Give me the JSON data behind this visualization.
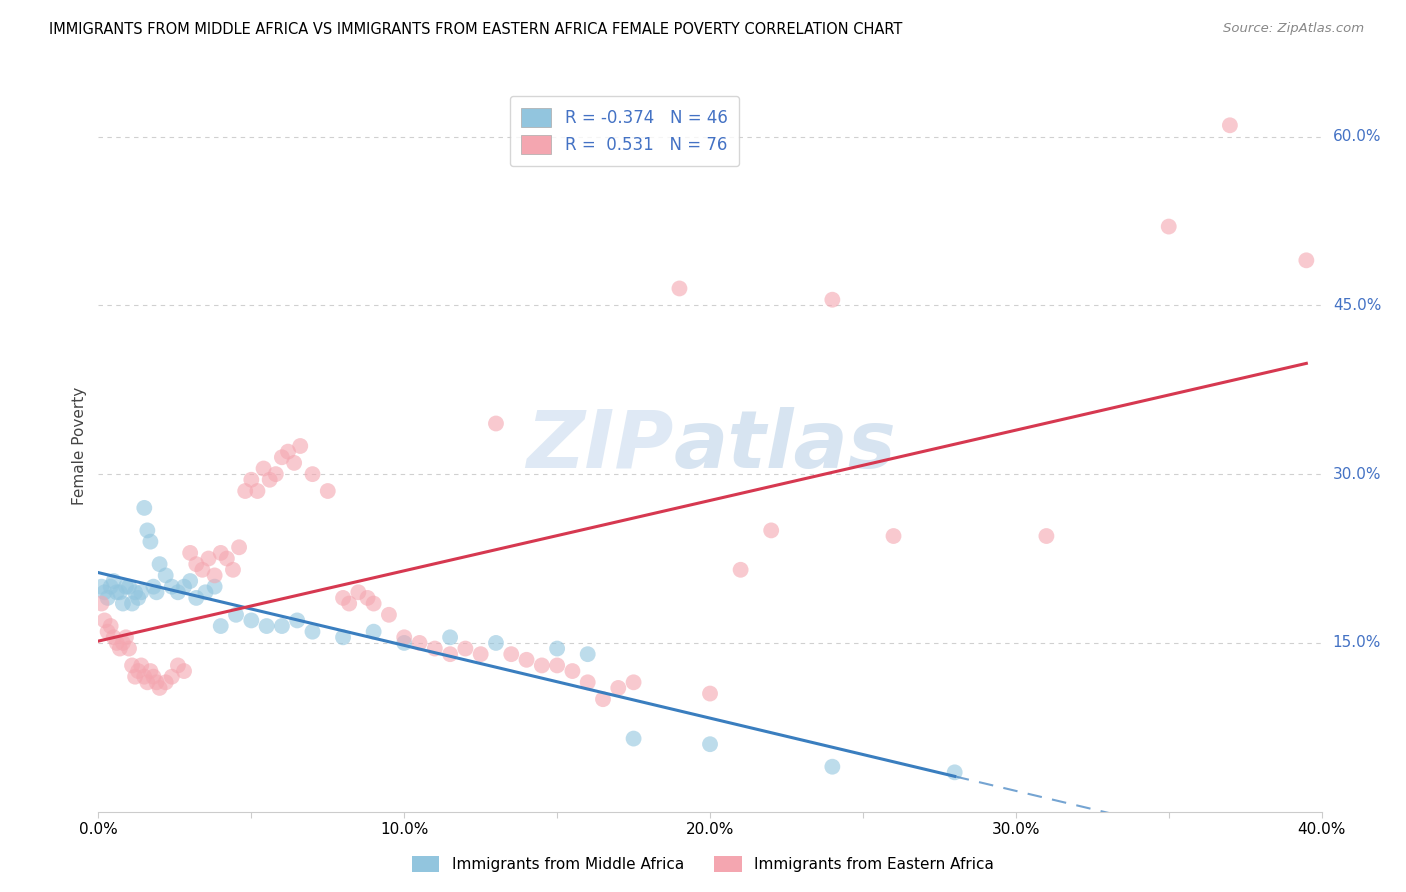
{
  "title": "IMMIGRANTS FROM MIDDLE AFRICA VS IMMIGRANTS FROM EASTERN AFRICA FEMALE POVERTY CORRELATION CHART",
  "source": "Source: ZipAtlas.com",
  "ylabel": "Female Poverty",
  "xlim": [
    0.0,
    0.4
  ],
  "ylim": [
    0.0,
    0.65
  ],
  "xtick_labels": [
    "0.0%",
    "",
    "10.0%",
    "",
    "20.0%",
    "",
    "30.0%",
    "",
    "40.0%"
  ],
  "xtick_vals": [
    0.0,
    0.05,
    0.1,
    0.15,
    0.2,
    0.25,
    0.3,
    0.35,
    0.4
  ],
  "ytick_labels_right": [
    "60.0%",
    "45.0%",
    "30.0%",
    "15.0%"
  ],
  "ytick_vals_right": [
    0.6,
    0.45,
    0.3,
    0.15
  ],
  "blue_R": -0.374,
  "blue_N": 46,
  "pink_R": 0.531,
  "pink_N": 76,
  "blue_color": "#92c5de",
  "pink_color": "#f4a6b0",
  "blue_line_color": "#3a7ebf",
  "pink_line_color": "#d63850",
  "blue_scatter": [
    [
      0.001,
      0.2
    ],
    [
      0.002,
      0.195
    ],
    [
      0.003,
      0.19
    ],
    [
      0.004,
      0.2
    ],
    [
      0.005,
      0.205
    ],
    [
      0.006,
      0.195
    ],
    [
      0.007,
      0.195
    ],
    [
      0.008,
      0.185
    ],
    [
      0.009,
      0.2
    ],
    [
      0.01,
      0.2
    ],
    [
      0.011,
      0.185
    ],
    [
      0.012,
      0.195
    ],
    [
      0.013,
      0.19
    ],
    [
      0.014,
      0.195
    ],
    [
      0.015,
      0.27
    ],
    [
      0.016,
      0.25
    ],
    [
      0.017,
      0.24
    ],
    [
      0.018,
      0.2
    ],
    [
      0.019,
      0.195
    ],
    [
      0.02,
      0.22
    ],
    [
      0.022,
      0.21
    ],
    [
      0.024,
      0.2
    ],
    [
      0.026,
      0.195
    ],
    [
      0.028,
      0.2
    ],
    [
      0.03,
      0.205
    ],
    [
      0.032,
      0.19
    ],
    [
      0.035,
      0.195
    ],
    [
      0.038,
      0.2
    ],
    [
      0.04,
      0.165
    ],
    [
      0.045,
      0.175
    ],
    [
      0.05,
      0.17
    ],
    [
      0.055,
      0.165
    ],
    [
      0.06,
      0.165
    ],
    [
      0.065,
      0.17
    ],
    [
      0.07,
      0.16
    ],
    [
      0.08,
      0.155
    ],
    [
      0.09,
      0.16
    ],
    [
      0.1,
      0.15
    ],
    [
      0.115,
      0.155
    ],
    [
      0.13,
      0.15
    ],
    [
      0.15,
      0.145
    ],
    [
      0.16,
      0.14
    ],
    [
      0.175,
      0.065
    ],
    [
      0.2,
      0.06
    ],
    [
      0.24,
      0.04
    ],
    [
      0.28,
      0.035
    ]
  ],
  "pink_scatter": [
    [
      0.001,
      0.185
    ],
    [
      0.002,
      0.17
    ],
    [
      0.003,
      0.16
    ],
    [
      0.004,
      0.165
    ],
    [
      0.005,
      0.155
    ],
    [
      0.006,
      0.15
    ],
    [
      0.007,
      0.145
    ],
    [
      0.008,
      0.15
    ],
    [
      0.009,
      0.155
    ],
    [
      0.01,
      0.145
    ],
    [
      0.011,
      0.13
    ],
    [
      0.012,
      0.12
    ],
    [
      0.013,
      0.125
    ],
    [
      0.014,
      0.13
    ],
    [
      0.015,
      0.12
    ],
    [
      0.016,
      0.115
    ],
    [
      0.017,
      0.125
    ],
    [
      0.018,
      0.12
    ],
    [
      0.019,
      0.115
    ],
    [
      0.02,
      0.11
    ],
    [
      0.022,
      0.115
    ],
    [
      0.024,
      0.12
    ],
    [
      0.026,
      0.13
    ],
    [
      0.028,
      0.125
    ],
    [
      0.03,
      0.23
    ],
    [
      0.032,
      0.22
    ],
    [
      0.034,
      0.215
    ],
    [
      0.036,
      0.225
    ],
    [
      0.038,
      0.21
    ],
    [
      0.04,
      0.23
    ],
    [
      0.042,
      0.225
    ],
    [
      0.044,
      0.215
    ],
    [
      0.046,
      0.235
    ],
    [
      0.048,
      0.285
    ],
    [
      0.05,
      0.295
    ],
    [
      0.052,
      0.285
    ],
    [
      0.054,
      0.305
    ],
    [
      0.056,
      0.295
    ],
    [
      0.058,
      0.3
    ],
    [
      0.06,
      0.315
    ],
    [
      0.062,
      0.32
    ],
    [
      0.064,
      0.31
    ],
    [
      0.066,
      0.325
    ],
    [
      0.07,
      0.3
    ],
    [
      0.075,
      0.285
    ],
    [
      0.08,
      0.19
    ],
    [
      0.082,
      0.185
    ],
    [
      0.085,
      0.195
    ],
    [
      0.088,
      0.19
    ],
    [
      0.09,
      0.185
    ],
    [
      0.095,
      0.175
    ],
    [
      0.1,
      0.155
    ],
    [
      0.105,
      0.15
    ],
    [
      0.11,
      0.145
    ],
    [
      0.115,
      0.14
    ],
    [
      0.12,
      0.145
    ],
    [
      0.125,
      0.14
    ],
    [
      0.13,
      0.345
    ],
    [
      0.135,
      0.14
    ],
    [
      0.14,
      0.135
    ],
    [
      0.145,
      0.13
    ],
    [
      0.15,
      0.13
    ],
    [
      0.155,
      0.125
    ],
    [
      0.16,
      0.115
    ],
    [
      0.165,
      0.1
    ],
    [
      0.17,
      0.11
    ],
    [
      0.175,
      0.115
    ],
    [
      0.19,
      0.465
    ],
    [
      0.2,
      0.105
    ],
    [
      0.21,
      0.215
    ],
    [
      0.22,
      0.25
    ],
    [
      0.24,
      0.455
    ],
    [
      0.26,
      0.245
    ],
    [
      0.31,
      0.245
    ],
    [
      0.35,
      0.52
    ],
    [
      0.37,
      0.61
    ],
    [
      0.395,
      0.49
    ]
  ],
  "watermark_zip": "ZIP",
  "watermark_atlas": "atlas",
  "background_color": "#ffffff",
  "grid_color": "#d0d0d0"
}
